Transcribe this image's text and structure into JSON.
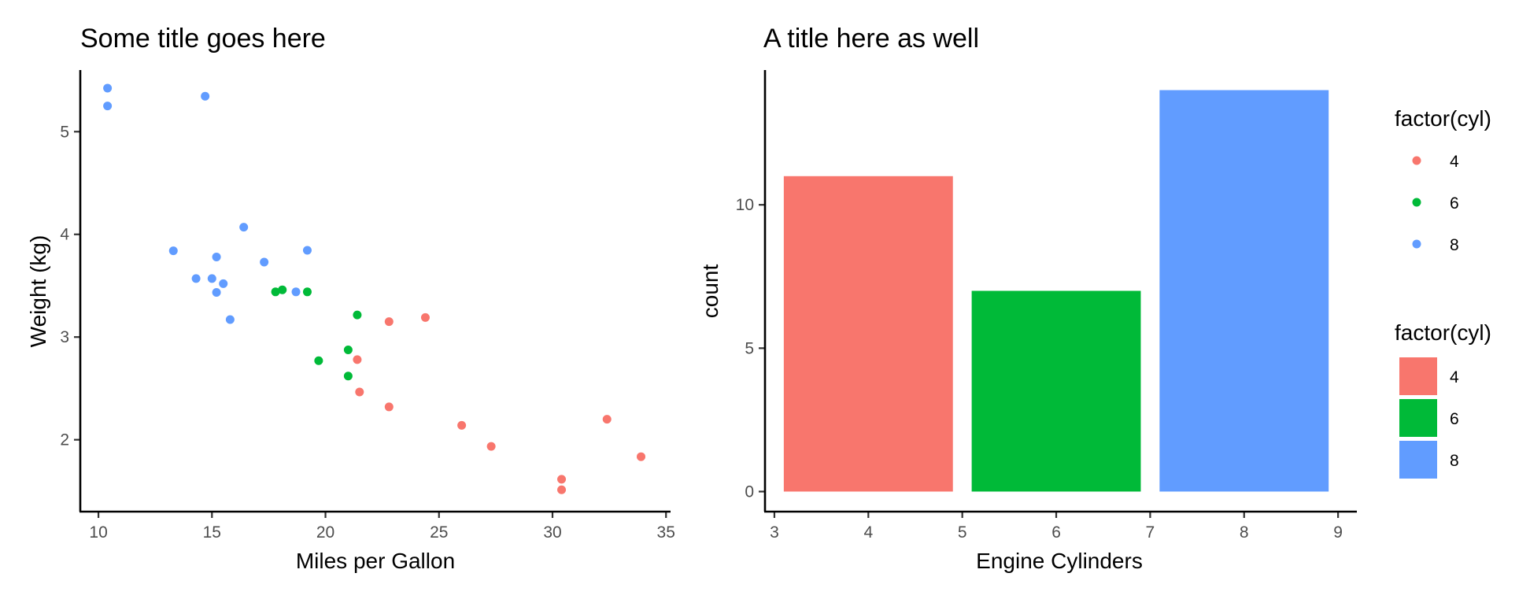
{
  "chart_data": [
    {
      "type": "scatter",
      "title": "Some title goes here",
      "xlabel": "Miles per Gallon",
      "ylabel": "Weight (kg)",
      "xlim": [
        9.2,
        35.2
      ],
      "ylim": [
        1.3,
        5.6
      ],
      "x_ticks": [
        10,
        15,
        20,
        25,
        30,
        35
      ],
      "y_ticks": [
        2,
        3,
        4,
        5
      ],
      "grid": false,
      "series": [
        {
          "name": "4",
          "color": "#F8766D",
          "points": [
            {
              "x": 22.8,
              "y": 2.32
            },
            {
              "x": 24.4,
              "y": 3.19
            },
            {
              "x": 22.8,
              "y": 3.15
            },
            {
              "x": 32.4,
              "y": 2.2
            },
            {
              "x": 30.4,
              "y": 1.615
            },
            {
              "x": 33.9,
              "y": 1.835
            },
            {
              "x": 21.5,
              "y": 2.465
            },
            {
              "x": 27.3,
              "y": 1.935
            },
            {
              "x": 26.0,
              "y": 2.14
            },
            {
              "x": 30.4,
              "y": 1.513
            },
            {
              "x": 21.4,
              "y": 2.78
            }
          ]
        },
        {
          "name": "6",
          "color": "#00BA38",
          "points": [
            {
              "x": 21.0,
              "y": 2.62
            },
            {
              "x": 21.0,
              "y": 2.875
            },
            {
              "x": 21.4,
              "y": 3.215
            },
            {
              "x": 18.1,
              "y": 3.46
            },
            {
              "x": 19.2,
              "y": 3.44
            },
            {
              "x": 17.8,
              "y": 3.44
            },
            {
              "x": 19.7,
              "y": 2.77
            }
          ]
        },
        {
          "name": "8",
          "color": "#619CFF",
          "points": [
            {
              "x": 18.7,
              "y": 3.44
            },
            {
              "x": 14.3,
              "y": 3.57
            },
            {
              "x": 16.4,
              "y": 4.07
            },
            {
              "x": 17.3,
              "y": 3.73
            },
            {
              "x": 15.2,
              "y": 3.78
            },
            {
              "x": 10.4,
              "y": 5.25
            },
            {
              "x": 10.4,
              "y": 5.424
            },
            {
              "x": 14.7,
              "y": 5.345
            },
            {
              "x": 15.5,
              "y": 3.52
            },
            {
              "x": 15.2,
              "y": 3.435
            },
            {
              "x": 13.3,
              "y": 3.84
            },
            {
              "x": 19.2,
              "y": 3.845
            },
            {
              "x": 15.8,
              "y": 3.17
            },
            {
              "x": 15.0,
              "y": 3.57
            }
          ]
        }
      ]
    },
    {
      "type": "bar",
      "title": "A title here as well",
      "xlabel": "Engine Cylinders",
      "ylabel": "count",
      "xlim": [
        2.9,
        9.2
      ],
      "ylim": [
        -0.7,
        14.7
      ],
      "x_ticks": [
        3,
        4,
        5,
        6,
        7,
        8,
        9
      ],
      "y_ticks": [
        0,
        5,
        10
      ],
      "grid": false,
      "bar_width": 1.8,
      "categories": [
        "4",
        "6",
        "8"
      ],
      "x": [
        4,
        6,
        8
      ],
      "values": [
        11,
        7,
        14
      ],
      "colors": [
        "#F8766D",
        "#00BA38",
        "#619CFF"
      ]
    }
  ],
  "legends": [
    {
      "title": "factor(cyl)",
      "kind": "point",
      "items": [
        {
          "label": "4",
          "color": "#F8766D"
        },
        {
          "label": "6",
          "color": "#00BA38"
        },
        {
          "label": "8",
          "color": "#619CFF"
        }
      ]
    },
    {
      "title": "factor(cyl)",
      "kind": "fill",
      "items": [
        {
          "label": "4",
          "color": "#F8766D"
        },
        {
          "label": "6",
          "color": "#00BA38"
        },
        {
          "label": "8",
          "color": "#619CFF"
        }
      ]
    }
  ]
}
